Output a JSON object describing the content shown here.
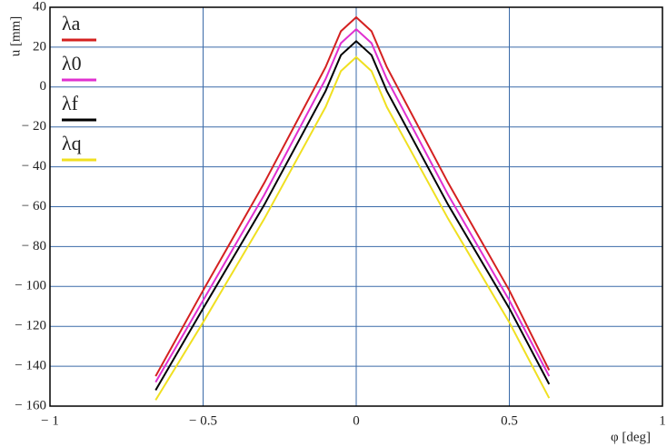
{
  "chart_data": {
    "type": "line",
    "x_label": "φ [deg]",
    "y_label": "u [mm]",
    "x": [
      -0.655,
      -0.5,
      -0.3,
      -0.1,
      -0.05,
      0,
      0.05,
      0.1,
      0.3,
      0.5,
      0.63
    ],
    "series": [
      {
        "name": "λa",
        "color": "#d42020",
        "values": [
          -145,
          -102,
          -48,
          10,
          28,
          35,
          28,
          10,
          -48,
          -102,
          -142
        ]
      },
      {
        "name": "λ0",
        "color": "#e030d0",
        "values": [
          -148,
          -107,
          -54,
          4,
          22,
          29,
          22,
          4,
          -54,
          -107,
          -145
        ]
      },
      {
        "name": "λf",
        "color": "#000000",
        "values": [
          -152,
          -111,
          -59,
          -2,
          16,
          23,
          16,
          -2,
          -59,
          -111,
          -149
        ]
      },
      {
        "name": "λq",
        "color": "#f0e020",
        "values": [
          -157,
          -118,
          -66,
          -10,
          8,
          15,
          8,
          -10,
          -66,
          -118,
          -156
        ]
      }
    ],
    "xlim": [
      -1,
      1
    ],
    "xticks": [
      {
        "value": -1,
        "label": "− 1"
      },
      {
        "value": -0.5,
        "label": "− 0.5"
      },
      0,
      0.5,
      1
    ],
    "ylim": [
      -160,
      40
    ],
    "yticks": [
      {
        "value": -160,
        "label": "− 160"
      },
      {
        "value": -140,
        "label": "− 140"
      },
      {
        "value": -120,
        "label": "− 120"
      },
      {
        "value": -100,
        "label": "− 100"
      },
      {
        "value": -80,
        "label": "− 80"
      },
      {
        "value": -60,
        "label": "− 60"
      },
      {
        "value": -40,
        "label": "− 40"
      },
      {
        "value": -20,
        "label": "− 20"
      },
      0,
      20,
      40
    ],
    "grid": true,
    "legend": "upper-left"
  }
}
